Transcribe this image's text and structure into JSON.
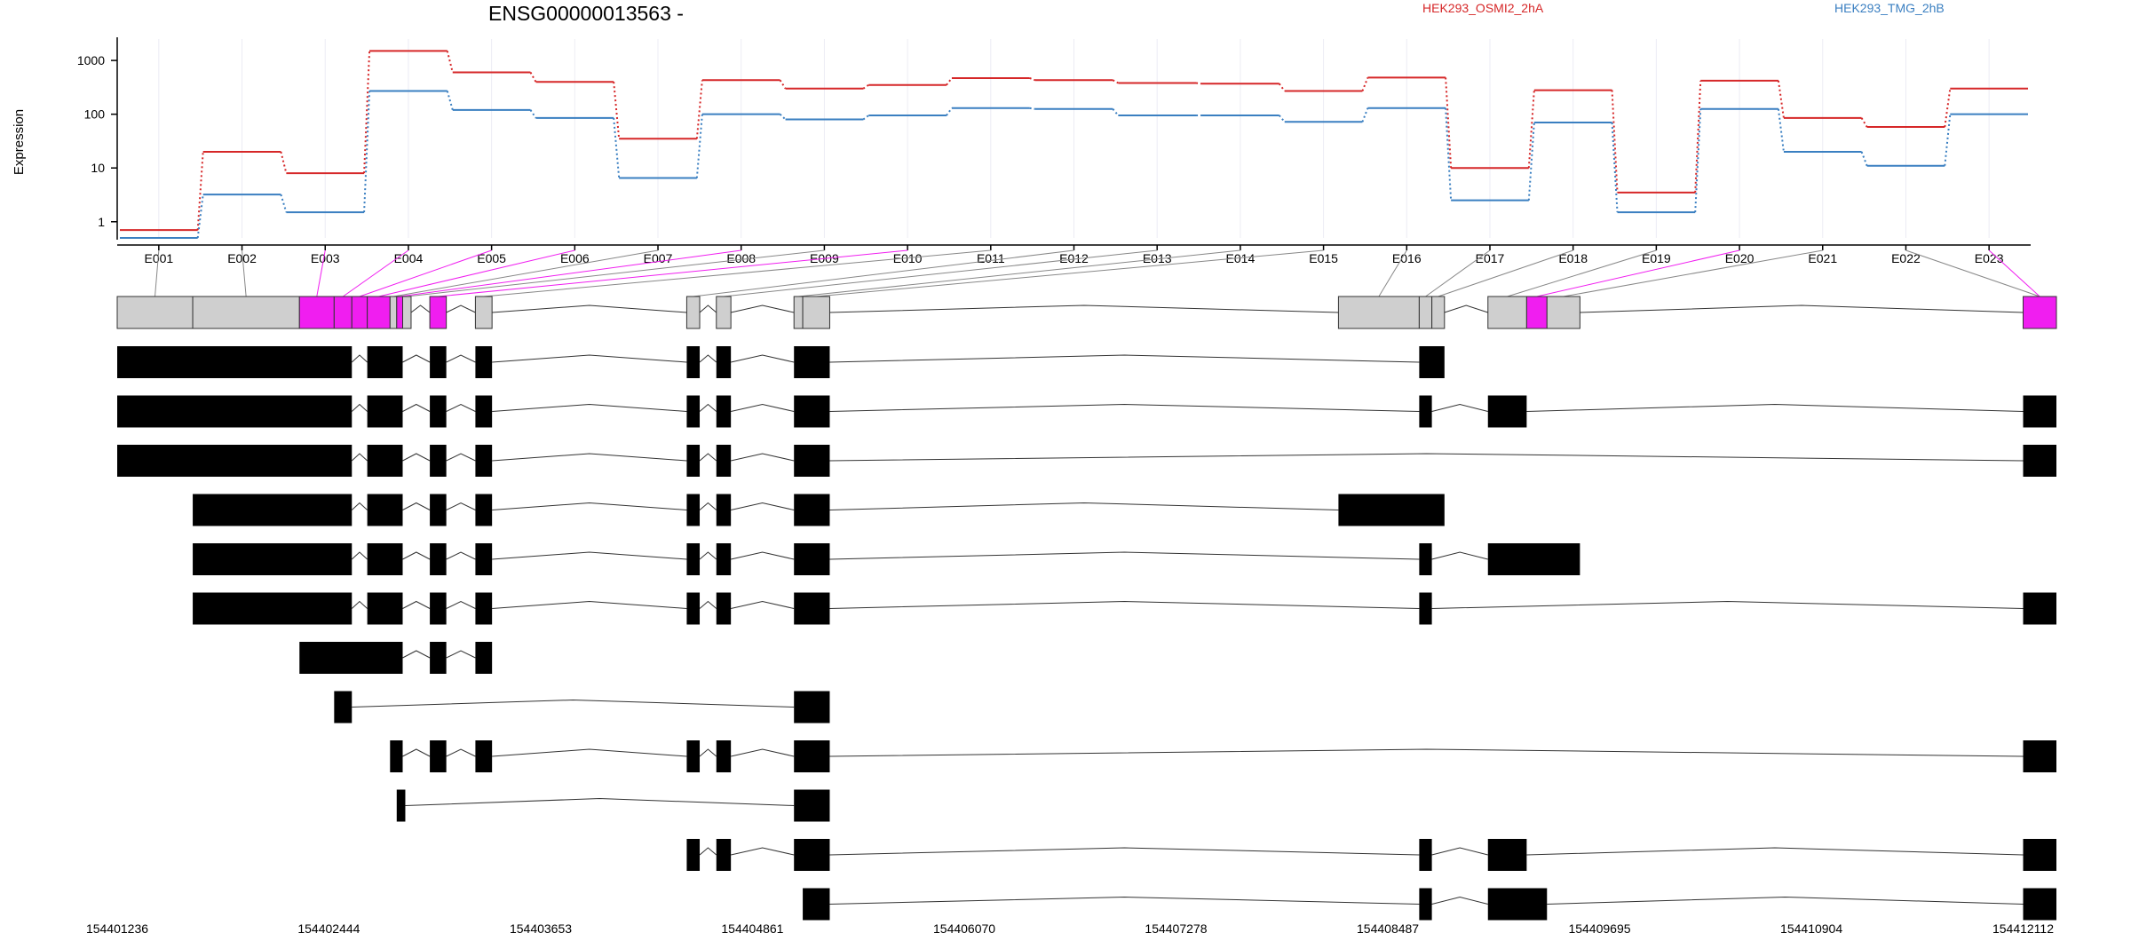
{
  "chart_data": {
    "type": "line",
    "title": "ENSG00000013563 -",
    "ylabel": "Expression",
    "y_scale": "log",
    "y_ticks": [
      1,
      10,
      100,
      1000
    ],
    "y_tick_labels": [
      "1",
      "10",
      "100",
      "1000"
    ],
    "exon_ids": [
      "E001",
      "E002",
      "E003",
      "E004",
      "E005",
      "E006",
      "E007",
      "E008",
      "E009",
      "E010",
      "E011",
      "E012",
      "E013",
      "E014",
      "E015",
      "E016",
      "E017",
      "E018",
      "E019",
      "E020",
      "E021",
      "E022",
      "E023"
    ],
    "series": [
      {
        "name": "HEK293_OSMI2_2hA",
        "color": "#d62728",
        "values": [
          0.7,
          20,
          8,
          1500,
          600,
          400,
          35,
          430,
          300,
          350,
          470,
          430,
          380,
          370,
          270,
          480,
          10,
          280,
          3.5,
          420,
          85,
          58,
          300
        ]
      },
      {
        "name": "HEK293_TMG_2hB",
        "color": "#3a7fc1",
        "values": [
          0.5,
          3.2,
          1.5,
          270,
          120,
          85,
          6.5,
          100,
          80,
          95,
          130,
          125,
          95,
          95,
          72,
          130,
          2.5,
          70,
          1.5,
          125,
          20,
          11,
          100
        ]
      }
    ],
    "significant_color": "#f01ef0",
    "significant_exons": [
      "E003",
      "E004",
      "E005",
      "E006",
      "E008",
      "E010",
      "E020",
      "E023"
    ],
    "exon_spans": [
      [
        154401236,
        154401667
      ],
      [
        154401667,
        154402276
      ],
      [
        154402276,
        154402474
      ],
      [
        154402474,
        154402575
      ],
      [
        154402575,
        154402663
      ],
      [
        154402663,
        154402793
      ],
      [
        154402793,
        154402831
      ],
      [
        154402831,
        154402865
      ],
      [
        154402865,
        154402913
      ],
      [
        154403020,
        154403114
      ],
      [
        154403280,
        154403375
      ],
      [
        154404486,
        154404560
      ],
      [
        154404655,
        154404738
      ],
      [
        154405098,
        154405148
      ],
      [
        154405148,
        154405302
      ],
      [
        154408205,
        154408666
      ],
      [
        154408666,
        154408738
      ],
      [
        154408738,
        154408810
      ],
      [
        154409058,
        154409279
      ],
      [
        154409279,
        154409395
      ],
      [
        154409395,
        154409583
      ],
      [
        154412112,
        154412302
      ],
      [
        154412112,
        154412302
      ]
    ],
    "transcripts": [
      [
        [
          154401236,
          154402575
        ],
        [
          154402663,
          154402865
        ],
        [
          154403020,
          154403114
        ],
        [
          154403280,
          154403375
        ],
        [
          154404486,
          154404560
        ],
        [
          154404655,
          154404738
        ],
        [
          154405098,
          154405302
        ],
        [
          154408666,
          154408810
        ]
      ],
      [
        [
          154401236,
          154402575
        ],
        [
          154402663,
          154402865
        ],
        [
          154403020,
          154403114
        ],
        [
          154403280,
          154403375
        ],
        [
          154404486,
          154404560
        ],
        [
          154404655,
          154404738
        ],
        [
          154405098,
          154405302
        ],
        [
          154408666,
          154408738
        ],
        [
          154409058,
          154409279
        ],
        [
          154412112,
          154412302
        ]
      ],
      [
        [
          154401236,
          154402575
        ],
        [
          154402663,
          154402865
        ],
        [
          154403020,
          154403114
        ],
        [
          154403280,
          154403375
        ],
        [
          154404486,
          154404560
        ],
        [
          154404655,
          154404738
        ],
        [
          154405098,
          154405302
        ],
        [
          154412112,
          154412302
        ]
      ],
      [
        [
          154401667,
          154402575
        ],
        [
          154402663,
          154402865
        ],
        [
          154403020,
          154403114
        ],
        [
          154403280,
          154403375
        ],
        [
          154404486,
          154404560
        ],
        [
          154404655,
          154404738
        ],
        [
          154405098,
          154405302
        ],
        [
          154408205,
          154408810
        ]
      ],
      [
        [
          154401667,
          154402575
        ],
        [
          154402663,
          154402865
        ],
        [
          154403020,
          154403114
        ],
        [
          154403280,
          154403375
        ],
        [
          154404486,
          154404560
        ],
        [
          154404655,
          154404738
        ],
        [
          154405098,
          154405302
        ],
        [
          154408666,
          154408738
        ],
        [
          154409058,
          154409583
        ]
      ],
      [
        [
          154401667,
          154402575
        ],
        [
          154402663,
          154402865
        ],
        [
          154403020,
          154403114
        ],
        [
          154403280,
          154403375
        ],
        [
          154404486,
          154404560
        ],
        [
          154404655,
          154404738
        ],
        [
          154405098,
          154405302
        ],
        [
          154408666,
          154408738
        ],
        [
          154412112,
          154412302
        ]
      ],
      [
        [
          154402276,
          154402865
        ],
        [
          154403020,
          154403114
        ],
        [
          154403280,
          154403375
        ]
      ],
      [
        [
          154402474,
          154402575
        ],
        [
          154405098,
          154405302
        ]
      ],
      [
        [
          154402793,
          154402865
        ],
        [
          154403020,
          154403114
        ],
        [
          154403280,
          154403375
        ],
        [
          154404486,
          154404560
        ],
        [
          154404655,
          154404738
        ],
        [
          154405098,
          154405302
        ],
        [
          154412112,
          154412302
        ]
      ],
      [
        [
          154402831,
          154402880
        ],
        [
          154405098,
          154405302
        ]
      ],
      [
        [
          154404486,
          154404560
        ],
        [
          154404655,
          154404738
        ],
        [
          154405098,
          154405302
        ],
        [
          154408666,
          154408738
        ],
        [
          154409058,
          154409279
        ],
        [
          154412112,
          154412302
        ]
      ],
      [
        [
          154405148,
          154405302
        ],
        [
          154408666,
          154408738
        ],
        [
          154409058,
          154409395
        ],
        [
          154412112,
          154412302
        ]
      ]
    ],
    "genomic_range": [
      154401236,
      154412302
    ],
    "x_tick_values": [
      154401236,
      154402444,
      154403653,
      154404861,
      154406070,
      154407278,
      154408487,
      154409695,
      154410904,
      154412112
    ],
    "x_tick_labels": [
      "154401236",
      "154402444",
      "154403653",
      "154404861",
      "154406070",
      "154407278",
      "154408487",
      "154409695",
      "154410904",
      "154412112"
    ],
    "grid": true,
    "legend_placement": "top-right"
  }
}
